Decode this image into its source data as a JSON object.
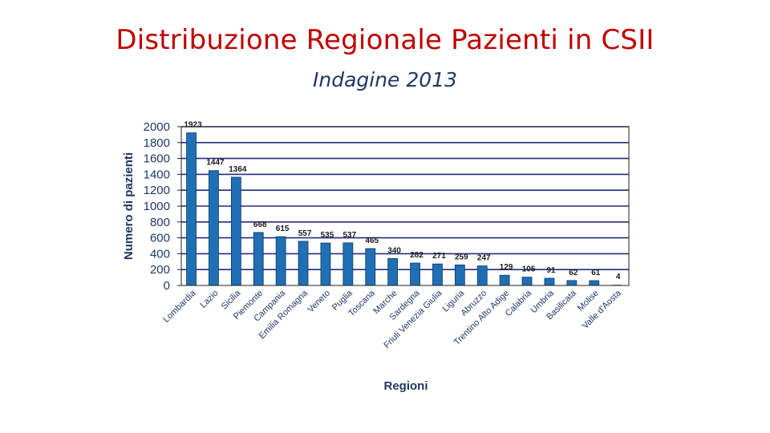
{
  "title": "Distribuzione Regionale Pazienti in CSII",
  "subtitle": "Indagine 2013",
  "chart_data": {
    "type": "bar",
    "title": "",
    "xlabel": "Regioni",
    "ylabel": "Numero di pazienti",
    "ylim": [
      0,
      2000
    ],
    "yticks": [
      0,
      200,
      400,
      600,
      800,
      1000,
      1200,
      1400,
      1600,
      1800,
      2000
    ],
    "grid": true,
    "bar_color": "#1f6fb5",
    "categories": [
      "Lombardia",
      "Lazio",
      "Sicilia",
      "Piemonte",
      "Campania",
      "Emilia Romagna",
      "Veneto",
      "Puglia",
      "Toscana",
      "Marche",
      "Sardegna",
      "Friuli Venezia Giulia",
      "Liguria",
      "Abruzzo",
      "Trentino Alto Adige",
      "Calabria",
      "Umbria",
      "Basilicata",
      "Molise",
      "Valle d'Aosta"
    ],
    "values": [
      1923,
      1447,
      1364,
      668,
      615,
      557,
      535,
      537,
      465,
      340,
      282,
      271,
      259,
      247,
      129,
      105,
      91,
      62,
      61,
      4
    ],
    "value_labels": [
      "1923",
      "1447",
      "1364",
      "668",
      "615",
      "557",
      "535",
      "537",
      "465",
      "340",
      "282",
      "271",
      "259",
      "247",
      "129",
      "105",
      "91",
      "62",
      "61",
      "4"
    ]
  }
}
